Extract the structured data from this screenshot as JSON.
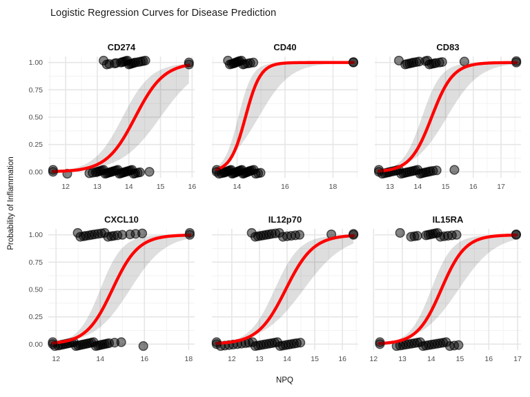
{
  "title": "Logistic Regression Curves for Disease Prediction",
  "x_axis_label": "NPQ",
  "y_axis_label": "Probability of Inflammation",
  "colors": {
    "curve": "#ff0000",
    "ribbon": "rgba(0,0,0,0.13)",
    "point_fill": "rgba(0,0,0,0.48)",
    "point_stroke": "rgba(0,0,0,0.62)",
    "grid_major": "#e6e6e6",
    "grid_minor": "#f2f2f2",
    "tick_text": "#4d4d4d",
    "background": "#ffffff"
  },
  "chart_data": {
    "type": "scatter",
    "subtype": "logistic-regression-facets",
    "layout": "facet-wrap 2 rows x 3 cols, free x scales, grid on, no legend",
    "title": "Logistic Regression Curves for Disease Prediction",
    "xlabel": "NPQ",
    "ylabel": "Probability of Inflammation",
    "ylim": [
      -0.055,
      1.055
    ],
    "y_ticks": {
      "values": [
        0,
        0.25,
        0.5,
        0.75,
        1
      ],
      "labels": [
        "0.00",
        "0.25",
        "0.50",
        "0.75",
        "1.00"
      ]
    },
    "panels": [
      {
        "title": "CD274",
        "x_domain": [
          11.45,
          16.08
        ],
        "x_ticks": [
          12,
          13,
          14,
          15,
          16
        ],
        "x_tick_step": 1,
        "curve": {
          "mid": 14.2,
          "k": 2.2,
          "x_start": 11.6,
          "x_end": 15.9
        },
        "band": {
          "upper": {
            "mid": 13.8,
            "k": 2.2
          },
          "lower": {
            "mid": 15.0,
            "k": 1.6
          }
        },
        "points_y1": [
          13.2,
          13.3,
          13.38,
          13.55,
          13.6,
          13.75,
          13.8,
          13.85,
          13.9,
          13.95,
          14.0,
          14.05,
          14.1,
          14.15,
          14.2,
          14.3,
          14.38,
          14.45,
          14.52,
          15.9
        ],
        "points_y0": [
          11.6,
          12.05,
          12.75,
          12.85,
          12.95,
          13.0,
          13.05,
          13.1,
          13.15,
          13.2,
          13.25,
          13.3,
          13.35,
          13.4,
          13.45,
          13.5,
          13.55,
          13.6,
          13.65,
          13.7,
          13.75,
          13.8,
          13.85,
          13.9,
          13.95,
          14.0,
          14.05,
          14.1,
          14.15,
          14.2,
          14.28,
          14.35,
          14.65
        ]
      },
      {
        "title": "CD40",
        "x_domain": [
          12.95,
          19.05
        ],
        "x_ticks": [
          14,
          16,
          18
        ],
        "x_tick_step": 2,
        "curve": {
          "mid": 14.35,
          "k": 3.2,
          "x_start": 13.15,
          "x_end": 18.85
        },
        "band": {
          "upper": {
            "mid": 14.05,
            "k": 3.4
          },
          "lower": {
            "mid": 14.9,
            "k": 1.5
          }
        },
        "points_y1": [
          13.62,
          13.7,
          13.78,
          13.85,
          13.9,
          13.95,
          14.0,
          14.05,
          14.1,
          14.18,
          14.25,
          14.32,
          14.45,
          14.55,
          14.68,
          18.85
        ],
        "points_y0": [
          13.15,
          13.25,
          13.35,
          13.45,
          13.5,
          13.55,
          13.6,
          13.65,
          13.7,
          13.75,
          13.8,
          13.85,
          13.9,
          13.95,
          14.0,
          14.05,
          14.1,
          14.15,
          14.2,
          14.25,
          14.3,
          14.35,
          14.4,
          14.45,
          14.5,
          14.55,
          14.62,
          14.7,
          14.78,
          14.88,
          14.98
        ]
      },
      {
        "title": "CD83",
        "x_domain": [
          12.45,
          17.72
        ],
        "x_ticks": [
          13,
          14,
          15,
          16,
          17
        ],
        "x_tick_step": 1,
        "curve": {
          "mid": 14.5,
          "k": 2.6,
          "x_start": 12.6,
          "x_end": 17.55
        },
        "band": {
          "upper": {
            "mid": 14.15,
            "k": 2.9
          },
          "lower": {
            "mid": 15.05,
            "k": 1.7
          }
        },
        "points_y1": [
          13.32,
          13.55,
          13.62,
          13.7,
          13.78,
          13.85,
          13.95,
          14.05,
          14.28,
          14.35,
          14.42,
          14.5,
          14.58,
          14.65,
          14.78,
          14.88,
          15.68,
          17.55
        ],
        "points_y0": [
          12.6,
          12.72,
          12.8,
          12.88,
          12.95,
          13.02,
          13.1,
          13.18,
          13.25,
          13.32,
          13.4,
          13.48,
          13.55,
          13.62,
          13.7,
          13.78,
          13.85,
          13.92,
          14.0,
          14.08,
          14.15,
          14.22,
          14.3,
          14.38,
          14.45,
          14.55,
          14.68,
          15.32
        ]
      },
      {
        "title": "CXCL10",
        "x_domain": [
          11.65,
          18.27
        ],
        "x_ticks": [
          12,
          14,
          16,
          18
        ],
        "x_tick_step": 2,
        "curve": {
          "mid": 14.55,
          "k": 1.7,
          "x_start": 11.85,
          "x_end": 18.05
        },
        "band": {
          "upper": {
            "mid": 14.0,
            "k": 2.0
          },
          "lower": {
            "mid": 15.35,
            "k": 1.25
          }
        },
        "points_y1": [
          12.98,
          13.1,
          13.25,
          13.35,
          13.5,
          13.62,
          13.75,
          13.9,
          14.05,
          14.2,
          14.35,
          14.5,
          14.62,
          14.78,
          15.0,
          15.35,
          15.6,
          15.9,
          18.05
        ],
        "points_y0": [
          11.85,
          11.95,
          12.1,
          12.2,
          12.3,
          12.4,
          12.5,
          12.6,
          12.7,
          12.8,
          12.9,
          13.0,
          13.1,
          13.2,
          13.3,
          13.4,
          13.5,
          13.6,
          13.7,
          13.8,
          13.9,
          14.0,
          14.1,
          14.2,
          14.3,
          14.4,
          14.65,
          14.95,
          15.95
        ]
      },
      {
        "title": "IL12p70",
        "x_domain": [
          11.28,
          16.57
        ],
        "x_ticks": [
          12,
          13,
          14,
          15,
          16
        ],
        "x_tick_step": 1,
        "curve": {
          "mid": 13.95,
          "k": 2.0,
          "x_start": 11.45,
          "x_end": 16.4
        },
        "band": {
          "upper": {
            "mid": 13.55,
            "k": 2.2
          },
          "lower": {
            "mid": 14.6,
            "k": 1.35
          }
        },
        "points_y1": [
          12.72,
          12.85,
          12.95,
          13.05,
          13.15,
          13.25,
          13.35,
          13.45,
          13.58,
          13.72,
          13.85,
          14.0,
          14.15,
          14.3,
          14.45,
          15.6,
          16.4
        ],
        "points_y0": [
          11.45,
          11.6,
          11.75,
          11.9,
          12.05,
          12.2,
          12.35,
          12.5,
          12.62,
          12.75,
          12.85,
          12.95,
          13.05,
          13.15,
          13.25,
          13.35,
          13.45,
          13.55,
          13.65,
          13.75,
          13.85,
          13.95,
          14.05,
          14.15,
          14.25,
          14.35,
          14.48
        ]
      },
      {
        "title": "IL15RA",
        "x_domain": [
          12.04,
          17.12
        ],
        "x_ticks": [
          12,
          13,
          14,
          15,
          16,
          17
        ],
        "x_tick_step": 1,
        "curve": {
          "mid": 14.35,
          "k": 2.4,
          "x_start": 12.2,
          "x_end": 16.95
        },
        "band": {
          "upper": {
            "mid": 14.0,
            "k": 2.7
          },
          "lower": {
            "mid": 14.95,
            "k": 1.55
          }
        },
        "points_y1": [
          12.92,
          13.3,
          13.42,
          13.52,
          13.82,
          13.9,
          13.98,
          14.06,
          14.14,
          14.22,
          14.32,
          14.45,
          14.58,
          14.72,
          14.88,
          16.95
        ],
        "points_y0": [
          12.22,
          12.8,
          12.92,
          13.02,
          13.12,
          13.22,
          13.32,
          13.42,
          13.52,
          13.62,
          13.72,
          13.82,
          13.92,
          14.02,
          14.12,
          14.22,
          14.32,
          14.42,
          14.52,
          14.65,
          14.8,
          14.95
        ]
      }
    ]
  }
}
